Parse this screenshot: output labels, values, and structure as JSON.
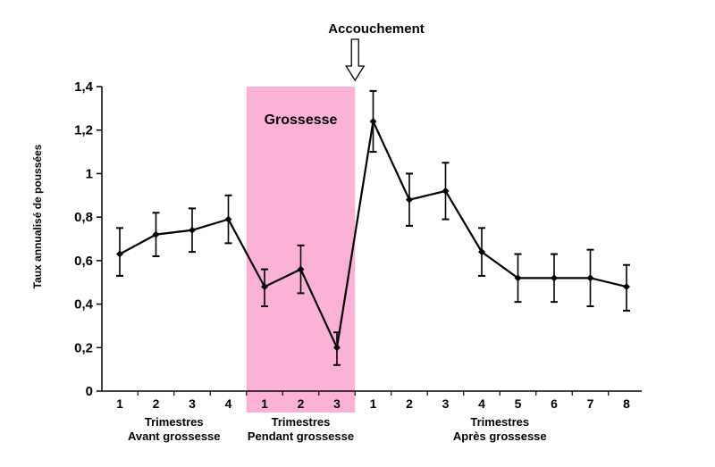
{
  "chart_data": {
    "type": "line",
    "title": "",
    "ylabel": "Taux annualisé de poussées",
    "xlabel": "",
    "ylim": [
      0,
      1.4
    ],
    "y_ticks": [
      "0",
      "0,2",
      "0,4",
      "0,6",
      "0,8",
      "1",
      "1,2",
      "1,4"
    ],
    "y_tick_values": [
      0,
      0.2,
      0.4,
      0.6,
      0.8,
      1.0,
      1.2,
      1.4
    ],
    "categories": [
      "1",
      "2",
      "3",
      "4",
      "1",
      "2",
      "3",
      "1",
      "2",
      "3",
      "4",
      "5",
      "6",
      "7",
      "8"
    ],
    "series": [
      {
        "name": "Taux annualisé de poussées",
        "values": [
          0.63,
          0.72,
          0.74,
          0.79,
          0.48,
          0.56,
          0.2,
          1.24,
          0.88,
          0.92,
          0.64,
          0.52,
          0.52,
          0.52,
          0.48
        ],
        "error_low": [
          0.53,
          0.62,
          0.64,
          0.68,
          0.39,
          0.45,
          0.12,
          1.1,
          0.76,
          0.79,
          0.53,
          0.41,
          0.41,
          0.39,
          0.37
        ],
        "error_high": [
          0.75,
          0.82,
          0.84,
          0.9,
          0.56,
          0.67,
          0.27,
          1.38,
          1.0,
          1.05,
          0.75,
          0.63,
          0.63,
          0.65,
          0.58
        ]
      }
    ],
    "groups": [
      {
        "line1": "Trimestres",
        "line2": "Avant grossesse",
        "start": 0,
        "end": 3
      },
      {
        "line1": "Trimestres",
        "line2": "Pendant grossesse",
        "start": 4,
        "end": 6
      },
      {
        "line1": "Trimestres",
        "line2": "Après grossesse",
        "start": 7,
        "end": 14
      }
    ],
    "highlight_band": {
      "label": "Grossesse",
      "start": 4,
      "end": 6,
      "color": "#fcb1d6"
    },
    "annotation": {
      "label": "Accouchement",
      "arrow_target": "between pregnancy and postpartum"
    },
    "grid": false,
    "legend": "none",
    "line_color": "#000000"
  }
}
